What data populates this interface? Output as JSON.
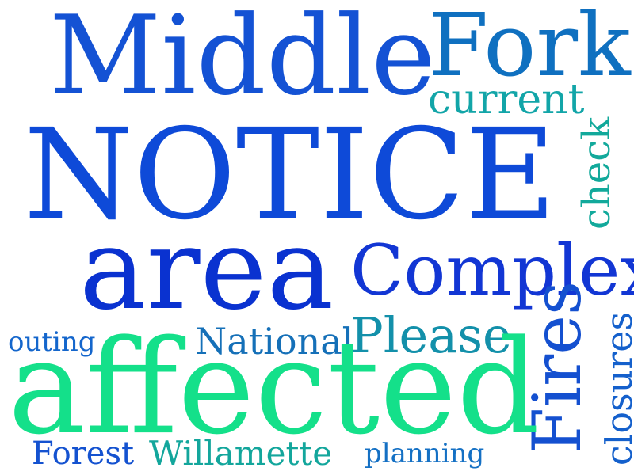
{
  "words": {
    "middle": {
      "text": "Middle",
      "color": "#1452d4"
    },
    "fork": {
      "text": "Fork",
      "color": "#0f70c0"
    },
    "current": {
      "text": "current",
      "color": "#12a5a8"
    },
    "notice": {
      "text": "NOTICE",
      "color": "#0e4ad8"
    },
    "check": {
      "text": "check",
      "color": "#12a99b"
    },
    "area": {
      "text": "area",
      "color": "#0a32d0"
    },
    "complex": {
      "text": "Complex",
      "color": "#1236d4"
    },
    "please": {
      "text": "Please",
      "color": "#1390aa"
    },
    "outing": {
      "text": "outing",
      "color": "#1466cc"
    },
    "national": {
      "text": "National",
      "color": "#1570b8"
    },
    "fires": {
      "text": "Fires",
      "color": "#1450d0"
    },
    "closures": {
      "text": "closures",
      "color": "#1460cc"
    },
    "affected": {
      "text": "affected",
      "color": "#14e08a"
    },
    "forest": {
      "text": "Forest",
      "color": "#1452d0"
    },
    "willamette": {
      "text": "Willamette",
      "color": "#13a69c"
    },
    "planning": {
      "text": "planning",
      "color": "#1470c4"
    }
  }
}
